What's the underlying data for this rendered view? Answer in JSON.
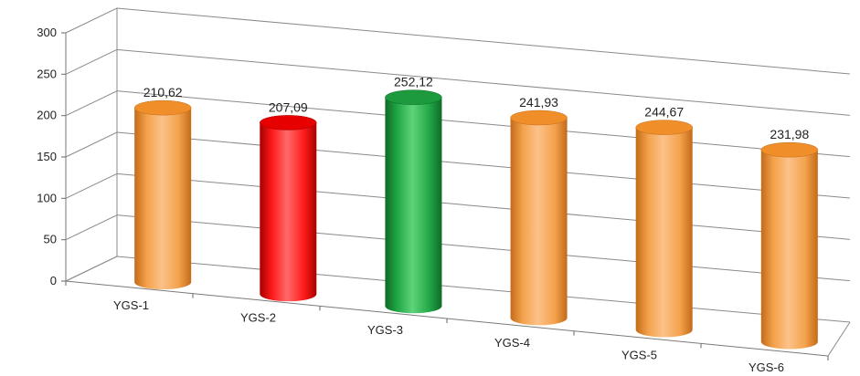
{
  "chart_data": {
    "type": "bar",
    "style": "3d-cylinder",
    "categories": [
      "YGS-1",
      "YGS-2",
      "YGS-3",
      "YGS-4",
      "YGS-5",
      "YGS-6"
    ],
    "values": [
      210.62,
      207.09,
      252.12,
      241.93,
      244.67,
      231.98
    ],
    "data_labels": [
      "210,62",
      "207,09",
      "252,12",
      "241,93",
      "244,67",
      "231,98"
    ],
    "y_ticks": [
      "0",
      "50",
      "100",
      "150",
      "200",
      "250",
      "300"
    ],
    "ylim": [
      0,
      300
    ],
    "grid": true,
    "legend": "none",
    "colors": [
      "orange",
      "red",
      "green",
      "orange",
      "orange",
      "orange"
    ],
    "palette": {
      "orange": {
        "light": "#fbc28a",
        "mid": "#f4a24c",
        "dark": "#c46a18",
        "top": "#f08f2a"
      },
      "red": {
        "light": "#ff6a6a",
        "mid": "#ff1a1a",
        "dark": "#a80000",
        "top": "#e60000"
      },
      "green": {
        "light": "#5fd37a",
        "mid": "#22a846",
        "dark": "#0d6b27",
        "top": "#1c9a3d"
      }
    }
  }
}
